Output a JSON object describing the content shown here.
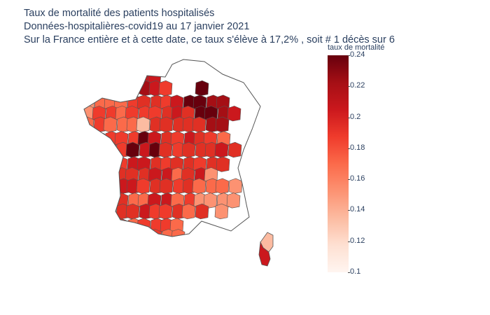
{
  "title": {
    "line1": "Taux de mortalité des patients hospitalisés",
    "line2": "Données-hospitalières-covid19 au 17 janvier 2021",
    "line3": "Sur la France entière et à cette date, ce taux s'élève à 17,2% , soit # 1 décès sur 6"
  },
  "colorbar": {
    "title": "taux de mortalité",
    "ticks": [
      "0.24",
      "0.22",
      "0.2",
      "0.18",
      "0.16",
      "0.14",
      "0.12",
      "0.1"
    ],
    "tick_values": [
      0.24,
      0.22,
      0.2,
      0.18,
      0.16,
      0.14,
      0.12,
      0.1
    ],
    "range": [
      0.1,
      0.24
    ],
    "colorscale": [
      "#fff5f0",
      "#fee0d2",
      "#fcbba1",
      "#fc9272",
      "#fb6a4a",
      "#ef3b2c",
      "#cb181d",
      "#a50f15",
      "#67000d"
    ]
  }
}
